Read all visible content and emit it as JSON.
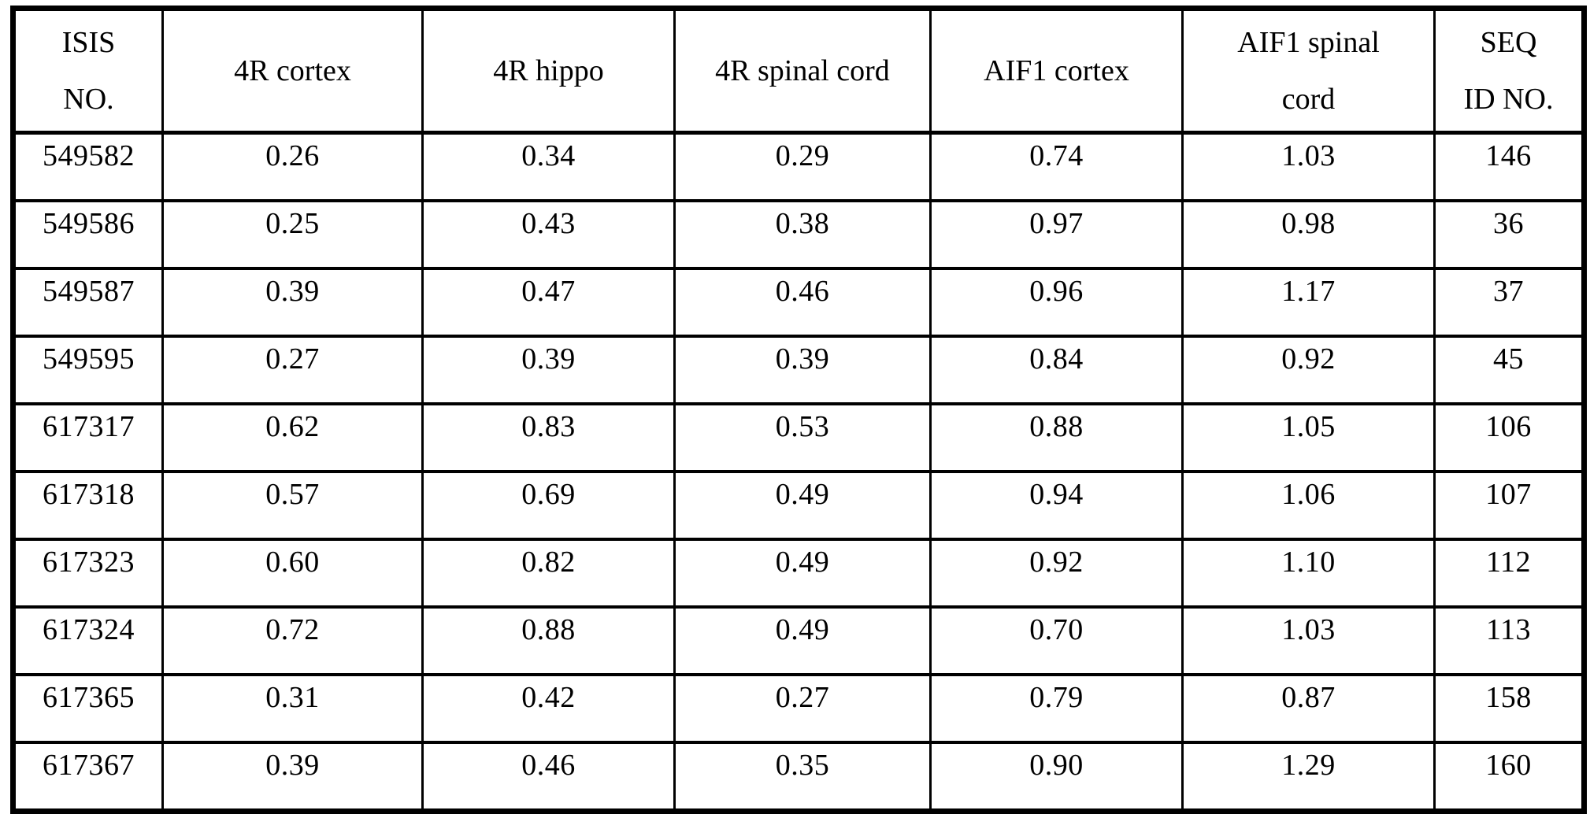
{
  "page": {
    "background_color": "#ffffff",
    "text_color": "#000000",
    "border_color": "#000000"
  },
  "table": {
    "columns": [
      {
        "label": "ISIS NO.",
        "lines": [
          "ISIS",
          "NO."
        ]
      },
      {
        "label": "4R cortex",
        "lines": [
          "4R cortex"
        ]
      },
      {
        "label": "4R hippo",
        "lines": [
          "4R hippo"
        ]
      },
      {
        "label": "4R spinal cord",
        "lines": [
          "4R spinal cord"
        ]
      },
      {
        "label": "AIF1 cortex",
        "lines": [
          "AIF1 cortex"
        ]
      },
      {
        "label": "AIF1 spinal cord",
        "lines": [
          "AIF1 spinal",
          "cord"
        ]
      },
      {
        "label": "SEQ ID NO.",
        "lines": [
          "SEQ",
          "ID NO."
        ]
      }
    ],
    "rows": [
      [
        "549582",
        "0.26",
        "0.34",
        "0.29",
        "0.74",
        "1.03",
        "146"
      ],
      [
        "549586",
        "0.25",
        "0.43",
        "0.38",
        "0.97",
        "0.98",
        "36"
      ],
      [
        "549587",
        "0.39",
        "0.47",
        "0.46",
        "0.96",
        "1.17",
        "37"
      ],
      [
        "549595",
        "0.27",
        "0.39",
        "0.39",
        "0.84",
        "0.92",
        "45"
      ],
      [
        "617317",
        "0.62",
        "0.83",
        "0.53",
        "0.88",
        "1.05",
        "106"
      ],
      [
        "617318",
        "0.57",
        "0.69",
        "0.49",
        "0.94",
        "1.06",
        "107"
      ],
      [
        "617323",
        "0.60",
        "0.82",
        "0.49",
        "0.92",
        "1.10",
        "112"
      ],
      [
        "617324",
        "0.72",
        "0.88",
        "0.49",
        "0.70",
        "1.03",
        "113"
      ],
      [
        "617365",
        "0.31",
        "0.42",
        "0.27",
        "0.79",
        "0.87",
        "158"
      ],
      [
        "617367",
        "0.39",
        "0.46",
        "0.35",
        "0.90",
        "1.29",
        "160"
      ]
    ]
  }
}
